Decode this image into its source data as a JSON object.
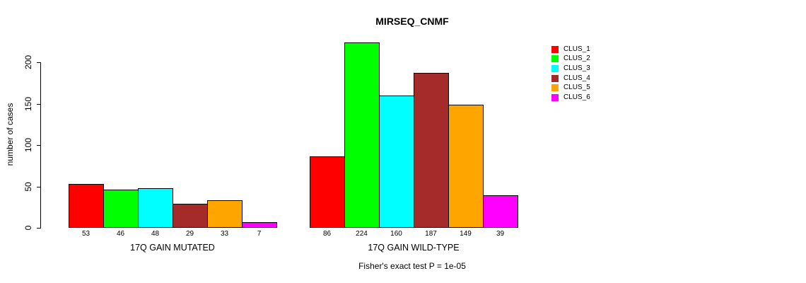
{
  "chart_data": {
    "type": "bar",
    "title": "MIRSEQ_CNMF",
    "ylabel": "number of cases",
    "xlabel": "",
    "footnote": "Fisher's exact test P = 1e-05",
    "ylim": [
      0,
      200
    ],
    "yticks": [
      0,
      50,
      100,
      150,
      200
    ],
    "grid": false,
    "legend_position": "right-outside",
    "bar_style": "grouped, contiguous within group, black 1px outline",
    "categories": [
      "17Q GAIN MUTATED",
      "17Q GAIN WILD-TYPE"
    ],
    "series": [
      {
        "name": "CLUS_1",
        "color": "#ff0000",
        "values": [
          53,
          86
        ]
      },
      {
        "name": "CLUS_2",
        "color": "#00ff00",
        "values": [
          46,
          224
        ]
      },
      {
        "name": "CLUS_3",
        "color": "#00ffff",
        "values": [
          48,
          160
        ]
      },
      {
        "name": "CLUS_4",
        "color": "#a52a2a",
        "values": [
          29,
          187
        ]
      },
      {
        "name": "CLUS_5",
        "color": "#ffa500",
        "values": [
          33,
          149
        ]
      },
      {
        "name": "CLUS_6",
        "color": "#ff00ff",
        "values": [
          7,
          39
        ]
      }
    ],
    "colors": {
      "axis": "#000000",
      "text": "#000000",
      "background": "#ffffff"
    }
  }
}
